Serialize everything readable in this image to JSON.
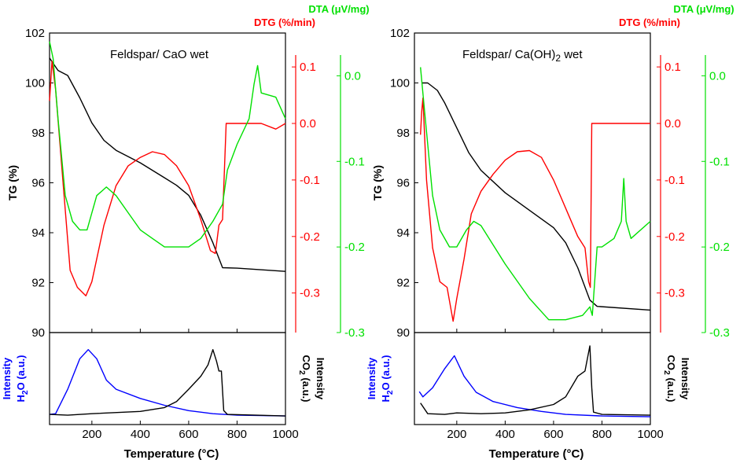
{
  "colors": {
    "tg": "#000000",
    "dtg": "#ff0000",
    "dta": "#00e000",
    "h2o": "#0000ff",
    "co2": "#000000"
  },
  "chart_data": [
    {
      "type": "line",
      "title": "Feldspar/ CaO wet",
      "xlabel": "Temperature (°C)",
      "xlim": [
        25,
        1000
      ],
      "xticks": [
        "200",
        "400",
        "600",
        "800",
        "1000"
      ],
      "ylabel_tg": "TG (%)",
      "ylabel_dtg": "DTG (%/min)",
      "ylabel_dta": "DTA (μV/mg)",
      "ylim_tg": [
        90,
        102
      ],
      "ylim_dtg": [
        -0.37,
        0.16
      ],
      "ylim_dta": [
        -0.3,
        0.05
      ],
      "tg_ticks": [
        "90",
        "92",
        "94",
        "96",
        "98",
        "100",
        "102"
      ],
      "dtg_ticks": [
        "-0.3",
        "-0.2",
        "-0.1",
        "0.0",
        "0.1"
      ],
      "dta_ticks": [
        "-0.3",
        "-0.2",
        "-0.1",
        "0.0"
      ],
      "ms_label_h2o": [
        "Intensity",
        "H2O (a.u.)"
      ],
      "ms_label_co2": [
        "Intensity",
        "CO2 (a.u.)"
      ],
      "series": [
        {
          "name": "TG",
          "axis": "tg",
          "points": [
            [
              25,
              101
            ],
            [
              60,
              100.5
            ],
            [
              100,
              100.3
            ],
            [
              150,
              99.4
            ],
            [
              200,
              98.4
            ],
            [
              250,
              97.7
            ],
            [
              300,
              97.3
            ],
            [
              400,
              96.8
            ],
            [
              500,
              96.2
            ],
            [
              550,
              95.9
            ],
            [
              600,
              95.5
            ],
            [
              650,
              94.7
            ],
            [
              700,
              93.6
            ],
            [
              740,
              92.6
            ],
            [
              800,
              92.58
            ],
            [
              1000,
              92.45
            ]
          ]
        },
        {
          "name": "DTG",
          "axis": "dtg",
          "points": [
            [
              25,
              0.04
            ],
            [
              35,
              0.11
            ],
            [
              50,
              0.06
            ],
            [
              80,
              -0.1
            ],
            [
              110,
              -0.26
            ],
            [
              140,
              -0.29
            ],
            [
              175,
              -0.305
            ],
            [
              200,
              -0.28
            ],
            [
              250,
              -0.18
            ],
            [
              300,
              -0.11
            ],
            [
              350,
              -0.075
            ],
            [
              400,
              -0.06
            ],
            [
              450,
              -0.05
            ],
            [
              500,
              -0.055
            ],
            [
              550,
              -0.075
            ],
            [
              600,
              -0.11
            ],
            [
              650,
              -0.17
            ],
            [
              690,
              -0.225
            ],
            [
              710,
              -0.23
            ],
            [
              725,
              -0.18
            ],
            [
              740,
              -0.17
            ],
            [
              755,
              0.0
            ],
            [
              800,
              0.0
            ],
            [
              900,
              0.0
            ],
            [
              960,
              -0.01
            ],
            [
              1000,
              0.0
            ]
          ]
        },
        {
          "name": "DTA",
          "axis": "dta",
          "points": [
            [
              25,
              0.04
            ],
            [
              40,
              0.02
            ],
            [
              60,
              -0.05
            ],
            [
              90,
              -0.14
            ],
            [
              120,
              -0.17
            ],
            [
              150,
              -0.18
            ],
            [
              180,
              -0.18
            ],
            [
              220,
              -0.14
            ],
            [
              260,
              -0.13
            ],
            [
              300,
              -0.14
            ],
            [
              350,
              -0.16
            ],
            [
              400,
              -0.18
            ],
            [
              450,
              -0.19
            ],
            [
              500,
              -0.2
            ],
            [
              600,
              -0.2
            ],
            [
              650,
              -0.19
            ],
            [
              700,
              -0.17
            ],
            [
              740,
              -0.15
            ],
            [
              760,
              -0.11
            ],
            [
              800,
              -0.08
            ],
            [
              850,
              -0.05
            ],
            [
              870,
              -0.01
            ],
            [
              885,
              0.012
            ],
            [
              900,
              -0.02
            ],
            [
              960,
              -0.025
            ],
            [
              1000,
              -0.05
            ]
          ]
        },
        {
          "name": "H2O",
          "axis": "ms_h2o",
          "points": [
            [
              25,
              0.05
            ],
            [
              50,
              0.06
            ],
            [
              100,
              0.38
            ],
            [
              150,
              0.78
            ],
            [
              185,
              0.9
            ],
            [
              220,
              0.78
            ],
            [
              260,
              0.5
            ],
            [
              300,
              0.38
            ],
            [
              400,
              0.26
            ],
            [
              500,
              0.17
            ],
            [
              600,
              0.1
            ],
            [
              700,
              0.06
            ],
            [
              800,
              0.04
            ],
            [
              1000,
              0.03
            ]
          ]
        },
        {
          "name": "CO2",
          "axis": "ms_co2",
          "points": [
            [
              25,
              0.05
            ],
            [
              100,
              0.04
            ],
            [
              200,
              0.06
            ],
            [
              400,
              0.09
            ],
            [
              500,
              0.14
            ],
            [
              550,
              0.22
            ],
            [
              600,
              0.38
            ],
            [
              650,
              0.55
            ],
            [
              680,
              0.7
            ],
            [
              700,
              0.9
            ],
            [
              715,
              0.75
            ],
            [
              725,
              0.62
            ],
            [
              735,
              0.62
            ],
            [
              745,
              0.1
            ],
            [
              760,
              0.05
            ],
            [
              1000,
              0.03
            ]
          ]
        }
      ]
    },
    {
      "type": "line",
      "title": "Feldspar/ Ca(OH)2 wet",
      "xlabel": "Temperature (°C)",
      "xlim": [
        25,
        1000
      ],
      "xticks": [
        "200",
        "400",
        "600",
        "800",
        "1000"
      ],
      "ylabel_tg": "TG (%)",
      "ylabel_dtg": "DTG (%/min)",
      "ylabel_dta": "DTA (μV/mg)",
      "ylim_tg": [
        90,
        102
      ],
      "ylim_dtg": [
        -0.37,
        0.16
      ],
      "ylim_dta": [
        -0.3,
        0.05
      ],
      "tg_ticks": [
        "90",
        "92",
        "94",
        "96",
        "98",
        "100",
        "102"
      ],
      "dtg_ticks": [
        "-0.3",
        "-0.2",
        "-0.1",
        "0.0",
        "0.1"
      ],
      "dta_ticks": [
        "-0.3",
        "-0.2",
        "-0.1",
        "0.0"
      ],
      "ms_label_h2o": [
        "Intensity",
        "H2O (a.u.)"
      ],
      "ms_label_co2": [
        "Intensity",
        "CO2 (a.u.)"
      ],
      "series": [
        {
          "name": "TG",
          "axis": "tg",
          "points": [
            [
              55,
              100
            ],
            [
              80,
              100
            ],
            [
              120,
              99.7
            ],
            [
              150,
              99.2
            ],
            [
              200,
              98.2
            ],
            [
              250,
              97.2
            ],
            [
              300,
              96.5
            ],
            [
              400,
              95.6
            ],
            [
              500,
              94.9
            ],
            [
              600,
              94.2
            ],
            [
              650,
              93.6
            ],
            [
              700,
              92.6
            ],
            [
              750,
              91.3
            ],
            [
              780,
              91.05
            ],
            [
              1000,
              90.9
            ]
          ]
        },
        {
          "name": "DTG",
          "axis": "dtg",
          "points": [
            [
              50,
              -0.02
            ],
            [
              55,
              0.02
            ],
            [
              60,
              0.045
            ],
            [
              75,
              -0.1
            ],
            [
              100,
              -0.22
            ],
            [
              130,
              -0.28
            ],
            [
              160,
              -0.29
            ],
            [
              185,
              -0.35
            ],
            [
              200,
              -0.31
            ],
            [
              230,
              -0.24
            ],
            [
              260,
              -0.16
            ],
            [
              300,
              -0.12
            ],
            [
              350,
              -0.09
            ],
            [
              400,
              -0.065
            ],
            [
              450,
              -0.05
            ],
            [
              500,
              -0.048
            ],
            [
              550,
              -0.06
            ],
            [
              600,
              -0.1
            ],
            [
              650,
              -0.15
            ],
            [
              700,
              -0.2
            ],
            [
              730,
              -0.22
            ],
            [
              745,
              -0.28
            ],
            [
              752,
              -0.29
            ],
            [
              758,
              0.0
            ],
            [
              800,
              0.0
            ],
            [
              900,
              0.0
            ],
            [
              1000,
              0.0
            ]
          ]
        },
        {
          "name": "DTA",
          "axis": "dta",
          "points": [
            [
              50,
              0.01
            ],
            [
              70,
              -0.05
            ],
            [
              100,
              -0.14
            ],
            [
              130,
              -0.18
            ],
            [
              170,
              -0.2
            ],
            [
              200,
              -0.2
            ],
            [
              240,
              -0.18
            ],
            [
              270,
              -0.17
            ],
            [
              300,
              -0.175
            ],
            [
              400,
              -0.22
            ],
            [
              500,
              -0.26
            ],
            [
              580,
              -0.285
            ],
            [
              650,
              -0.285
            ],
            [
              720,
              -0.28
            ],
            [
              750,
              -0.27
            ],
            [
              760,
              -0.28
            ],
            [
              780,
              -0.2
            ],
            [
              800,
              -0.2
            ],
            [
              850,
              -0.19
            ],
            [
              880,
              -0.17
            ],
            [
              890,
              -0.12
            ],
            [
              900,
              -0.17
            ],
            [
              920,
              -0.19
            ],
            [
              1000,
              -0.17
            ]
          ]
        },
        {
          "name": "H2O",
          "axis": "ms_h2o",
          "points": [
            [
              45,
              0.35
            ],
            [
              60,
              0.28
            ],
            [
              100,
              0.4
            ],
            [
              150,
              0.65
            ],
            [
              190,
              0.82
            ],
            [
              230,
              0.55
            ],
            [
              280,
              0.34
            ],
            [
              350,
              0.22
            ],
            [
              450,
              0.14
            ],
            [
              550,
              0.09
            ],
            [
              650,
              0.05
            ],
            [
              800,
              0.03
            ],
            [
              1000,
              0.02
            ]
          ]
        },
        {
          "name": "CO2",
          "axis": "ms_co2",
          "points": [
            [
              50,
              0.2
            ],
            [
              80,
              0.06
            ],
            [
              150,
              0.05
            ],
            [
              200,
              0.07
            ],
            [
              300,
              0.06
            ],
            [
              400,
              0.07
            ],
            [
              500,
              0.11
            ],
            [
              600,
              0.18
            ],
            [
              650,
              0.28
            ],
            [
              700,
              0.55
            ],
            [
              730,
              0.62
            ],
            [
              750,
              0.95
            ],
            [
              758,
              0.4
            ],
            [
              765,
              0.08
            ],
            [
              800,
              0.05
            ],
            [
              1000,
              0.04
            ]
          ]
        }
      ]
    }
  ]
}
